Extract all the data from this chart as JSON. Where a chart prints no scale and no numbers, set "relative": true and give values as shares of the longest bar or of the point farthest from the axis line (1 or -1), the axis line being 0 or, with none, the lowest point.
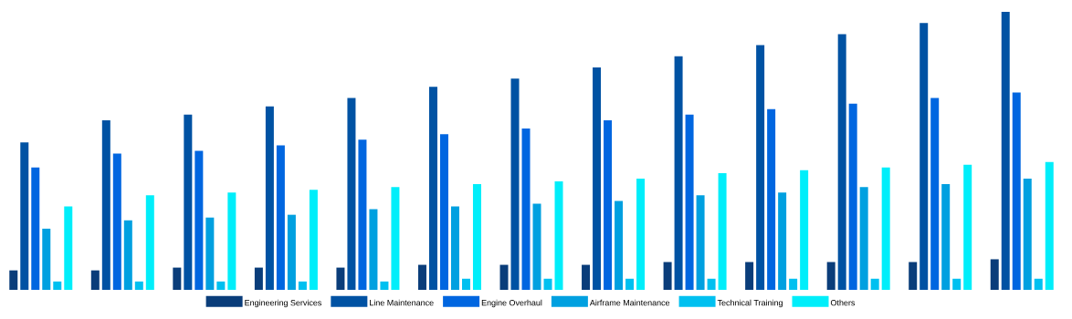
{
  "chart_data": {
    "type": "bar",
    "relative": true,
    "legend": "bottom",
    "categories": [
      null,
      null,
      null,
      null,
      null,
      null,
      null,
      null,
      null,
      null,
      null,
      null,
      null
    ],
    "series": [
      {
        "name": "Engineering Services",
        "color": "#0a3d7a",
        "values": [
          0.07,
          0.07,
          0.08,
          0.08,
          0.08,
          0.09,
          0.09,
          0.09,
          0.1,
          0.1,
          0.1,
          0.1,
          0.11
        ]
      },
      {
        "name": "Line Maintenance",
        "color": "#0052a3",
        "values": [
          0.53,
          0.61,
          0.63,
          0.66,
          0.69,
          0.73,
          0.76,
          0.8,
          0.84,
          0.88,
          0.92,
          0.96,
          1
        ]
      },
      {
        "name": "Engine Overhaul",
        "color": "#0066e0",
        "values": [
          0.44,
          0.49,
          0.5,
          0.52,
          0.54,
          0.56,
          0.58,
          0.61,
          0.63,
          0.65,
          0.67,
          0.69,
          0.71
        ]
      },
      {
        "name": "Airframe Maintenance",
        "color": "#00a0e0",
        "values": [
          0.22,
          0.25,
          0.26,
          0.27,
          0.29,
          0.3,
          0.31,
          0.32,
          0.34,
          0.35,
          0.37,
          0.38,
          0.4
        ]
      },
      {
        "name": "Technical Training",
        "color": "#00c0f0",
        "values": [
          0.03,
          0.03,
          0.03,
          0.03,
          0.03,
          0.04,
          0.04,
          0.04,
          0.04,
          0.04,
          0.04,
          0.04,
          0.04
        ]
      },
      {
        "name": "Others",
        "color": "#00eefa",
        "values": [
          0.3,
          0.34,
          0.35,
          0.36,
          0.37,
          0.38,
          0.39,
          0.4,
          0.42,
          0.43,
          0.44,
          0.45,
          0.46
        ]
      }
    ]
  }
}
